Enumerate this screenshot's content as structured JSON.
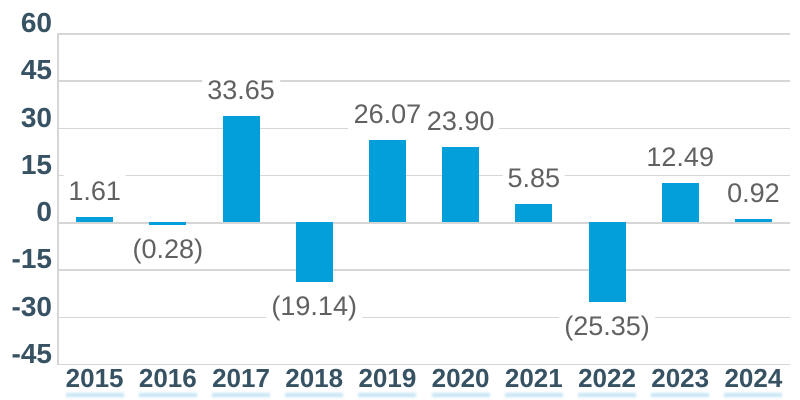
{
  "chart_data": {
    "type": "bar",
    "title": "",
    "categories": [
      "2015",
      "2016",
      "2017",
      "2018",
      "2019",
      "2020",
      "2021",
      "2022",
      "2023",
      "2024"
    ],
    "values": [
      1.61,
      -0.28,
      33.65,
      -19.14,
      26.07,
      23.9,
      5.85,
      -25.35,
      12.49,
      0.92
    ],
    "data_labels": [
      "1.61",
      "(0.28)",
      "33.65",
      "(19.14)",
      "26.07",
      "23.90",
      "5.85",
      "(25.35)",
      "12.49",
      "0.92"
    ],
    "y_ticks": [
      60,
      45,
      30,
      15,
      0,
      -15,
      -30,
      -45
    ],
    "ylim": [
      -45,
      60
    ],
    "xlabel": "",
    "ylabel": "",
    "grid": true,
    "legend": "none",
    "negative_label_format": "parentheses",
    "colors": {
      "bar": "#029FDB",
      "gridline": "#D6D6D6",
      "axis_line": "#D6D6D6",
      "axis_tick_labels": "#375263",
      "year_labels": "#375263",
      "data_labels": "#616161",
      "background": "#FFFFFF",
      "bottom_artifact": "#7FC4E8"
    }
  }
}
